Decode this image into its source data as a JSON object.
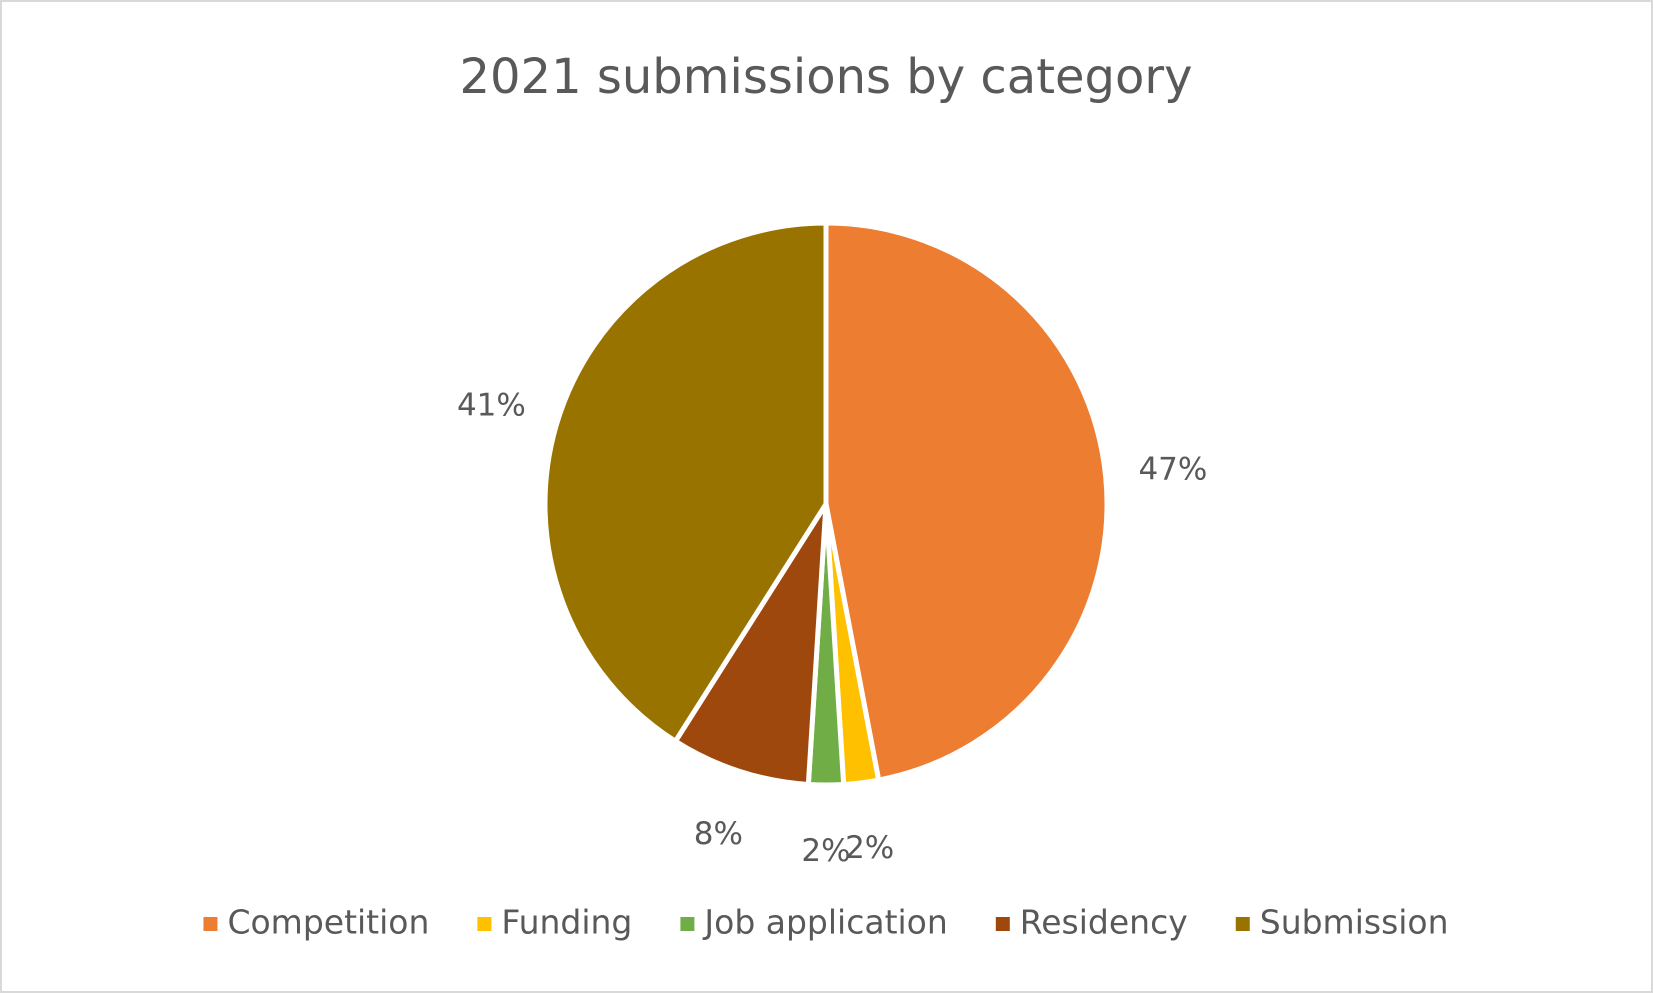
{
  "chart_data": {
    "type": "pie",
    "title": "2021 submissions by category",
    "categories": [
      "Competition",
      "Funding",
      "Job application",
      "Residency",
      "Submission"
    ],
    "values": [
      47,
      2,
      2,
      8,
      41
    ],
    "value_labels": [
      "47%",
      "2%",
      "2%",
      "8%",
      "41%"
    ],
    "colors": [
      "#ED7D31",
      "#FFC000",
      "#70AD47",
      "#9E480E",
      "#997300"
    ],
    "legend": "bottom"
  }
}
